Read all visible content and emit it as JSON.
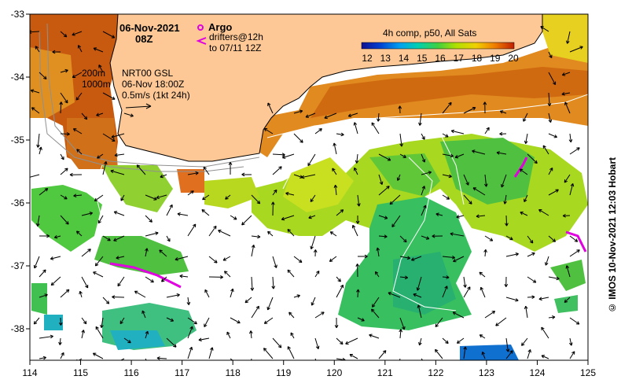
{
  "header": {
    "date": "06-Nov-2021",
    "time": "08Z",
    "legend_argo": "Argo",
    "legend_drifters": "drifters@12h",
    "legend_drifters_to": "to 07/11 12Z",
    "colorbar_title": "4h comp, p50, All Sats",
    "colorbar_ticks": [
      "12",
      "13",
      "14",
      "15",
      "16",
      "17",
      "18",
      "19",
      "20"
    ]
  },
  "annotations": {
    "contour_200": "200m",
    "contour_1000": "1000m",
    "nrt_label": "NRT00 GSL",
    "nrt_time": "06-Nov 18:00Z",
    "scale_label": "0.5m/s (1kt 24h)"
  },
  "axes": {
    "x_ticks": [
      "114",
      "115",
      "116",
      "117",
      "118",
      "119",
      "120",
      "121",
      "122",
      "123",
      "124",
      "125"
    ],
    "y_ticks": [
      "-33",
      "-34",
      "-35",
      "-36",
      "-37",
      "-38"
    ]
  },
  "copyright": "© IMOS 10-Nov-2021 12:03 Hobart",
  "colors": {
    "land": "#fdc896",
    "argo": "#e000e0",
    "colorbar": [
      "#1010a0",
      "#0050e0",
      "#00a0f0",
      "#00d0a0",
      "#40d040",
      "#a0e000",
      "#f0e000",
      "#f0a000",
      "#e06000",
      "#c03000"
    ]
  }
}
